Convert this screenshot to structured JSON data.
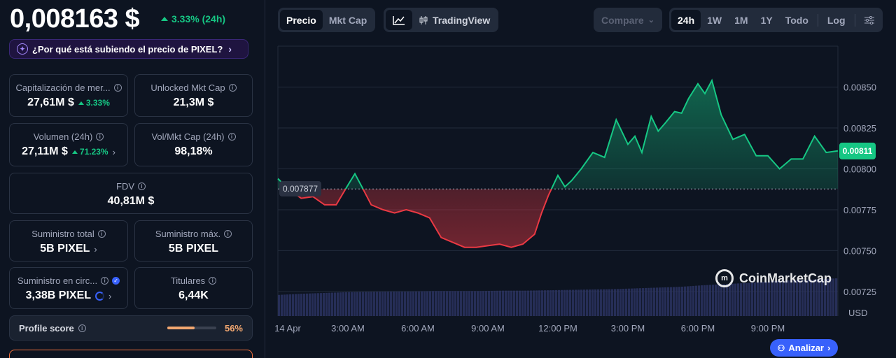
{
  "header": {
    "price": "0,008163 $",
    "change": "3.33% (24h)",
    "why_text": "¿Por qué está subiendo el precio de PIXEL?"
  },
  "stats": {
    "market_cap": {
      "label": "Capitalización de mer...",
      "value": "27,61M $",
      "change": "3.33%"
    },
    "unlocked": {
      "label": "Unlocked Mkt Cap",
      "value": "21,3M $"
    },
    "volume": {
      "label": "Volumen (24h)",
      "value": "27,11M $",
      "change": "71.23%"
    },
    "vol_mkt": {
      "label": "Vol/Mkt Cap (24h)",
      "value": "98,18%"
    },
    "fdv": {
      "label": "FDV",
      "value": "40,81M $"
    },
    "total_supply": {
      "label": "Suministro total",
      "value": "5B PIXEL"
    },
    "max_supply": {
      "label": "Suministro máx.",
      "value": "5B PIXEL"
    },
    "circ_supply": {
      "label": "Suministro en circ...",
      "value": "3,38B PIXEL"
    },
    "holders": {
      "label": "Titulares",
      "value": "6,44K"
    }
  },
  "profile": {
    "label": "Profile score",
    "value": "56%",
    "fraction": 0.56
  },
  "toolbar": {
    "price_tab": "Precio",
    "mktcap_tab": "Mkt Cap",
    "tradingview": "TradingView",
    "compare": "Compare",
    "ranges": [
      "24h",
      "1W",
      "1M",
      "1Y",
      "Todo"
    ],
    "log": "Log"
  },
  "chart_data": {
    "type": "area",
    "currency": "USD",
    "x_ticks": [
      "14 Apr",
      "3:00 AM",
      "6:00 AM",
      "9:00 AM",
      "12:00 PM",
      "3:00 PM",
      "6:00 PM",
      "9:00 PM"
    ],
    "y_ticks": [
      "0.00850",
      "0.00825",
      "0.00800",
      "0.00775",
      "0.00750",
      "0.00725"
    ],
    "ylim": [
      0.0071,
      0.00875
    ],
    "baseline": 0.007877,
    "baseline_label": "0.007877",
    "current_price_label": "0.00811",
    "current_price": 0.00811,
    "x_hours": [
      0,
      0.5,
      1,
      1.5,
      2,
      2.5,
      3,
      3.3,
      3.6,
      4,
      4.5,
      5,
      5.5,
      6,
      6.5,
      7,
      7.5,
      8,
      8.5,
      9,
      9.5,
      10,
      10.5,
      11,
      11.3,
      11.6,
      12,
      12.3,
      12.6,
      13,
      13.5,
      14,
      14.5,
      15,
      15.3,
      15.6,
      16,
      16.3,
      16.6,
      17,
      17.3,
      17.6,
      18,
      18.3,
      18.6,
      19,
      19.5,
      20,
      20.5,
      21,
      21.5,
      22,
      22.5,
      23,
      23.5,
      24
    ],
    "values": [
      0.00794,
      0.00787,
      0.00782,
      0.00783,
      0.00778,
      0.00778,
      0.0079,
      0.00797,
      0.00789,
      0.00778,
      0.00775,
      0.00773,
      0.00775,
      0.00773,
      0.0077,
      0.00758,
      0.00755,
      0.00752,
      0.00752,
      0.00753,
      0.00754,
      0.00752,
      0.00754,
      0.0076,
      0.00773,
      0.00784,
      0.00796,
      0.00789,
      0.00793,
      0.008,
      0.0081,
      0.00807,
      0.0083,
      0.00815,
      0.0082,
      0.0081,
      0.00832,
      0.00823,
      0.00828,
      0.00835,
      0.00834,
      0.00843,
      0.00852,
      0.00846,
      0.00854,
      0.00833,
      0.00818,
      0.00821,
      0.00808,
      0.00808,
      0.008,
      0.00806,
      0.00806,
      0.0082,
      0.0081,
      0.00811
    ],
    "volume_relative": [
      0.55,
      0.58,
      0.6,
      0.62,
      0.63,
      0.64,
      0.64,
      0.65,
      0.65,
      0.65,
      0.66,
      0.66,
      0.67,
      0.68,
      0.69,
      0.7,
      0.72,
      0.74,
      0.76,
      0.8,
      0.83,
      0.86,
      0.9,
      0.93,
      0.95,
      0.98
    ]
  },
  "watermark": "CoinMarketCap",
  "analizar": "Analizar"
}
